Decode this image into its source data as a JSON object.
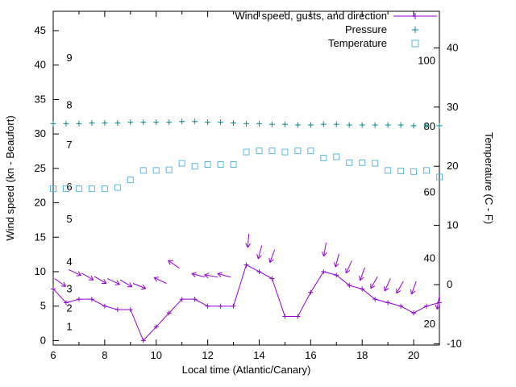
{
  "window": {
    "background": "#ffffff"
  },
  "chart_data": {
    "type": "line",
    "title": "",
    "xlabel": "Local time (Atlantic/Canary)",
    "ylabel_left": "Wind speed (kn - Beaufort)",
    "ylabel_right": "Temperature (C - F)",
    "grid": false,
    "x_range": [
      6,
      21
    ],
    "x_ticks_major": [
      6,
      8,
      10,
      12,
      14,
      16,
      18,
      20
    ],
    "x_ticks_minor": [
      7,
      9,
      11,
      13,
      15,
      17,
      19,
      21
    ],
    "left_axis": {
      "label": "Wind speed (kn - Beaufort)",
      "range": [
        0,
        47.8
      ],
      "ticks": [
        0,
        5,
        10,
        15,
        20,
        25,
        30,
        35,
        40,
        45
      ]
    },
    "right_axis": {
      "label": "Temperature (C - F)",
      "range": [
        -10,
        46
      ],
      "ticks": [
        -10,
        0,
        10,
        20,
        30,
        40
      ]
    },
    "beaufort_labels": [
      {
        "beaufort": "1",
        "kn": 2
      },
      {
        "beaufort": "2",
        "kn": 4.7
      },
      {
        "beaufort": "3",
        "kn": 7.5
      },
      {
        "beaufort": "4",
        "kn": 11.4
      },
      {
        "beaufort": "5",
        "kn": 17.6
      },
      {
        "beaufort": "6",
        "kn": 22.3
      },
      {
        "beaufort": "7",
        "kn": 28.4
      },
      {
        "beaufort": "8",
        "kn": 34.2
      },
      {
        "beaufort": "9",
        "kn": 41
      }
    ],
    "fahrenheit_labels": [
      {
        "f": "20",
        "c": -6.7
      },
      {
        "f": "40",
        "c": 4.4
      },
      {
        "f": "60",
        "c": 15.6
      },
      {
        "f": "80",
        "c": 26.7
      },
      {
        "f": "100",
        "c": 37.8
      }
    ],
    "legend": {
      "position": "top-right",
      "entries": [
        {
          "label": "Wind speed, gusts, and direction",
          "series": "wind",
          "style": "line+plus"
        },
        {
          "label": "Pressure",
          "series": "pressure",
          "style": "plus"
        },
        {
          "label": "Temperature",
          "series": "temperature",
          "style": "square"
        }
      ]
    },
    "x": [
      6,
      6.5,
      7,
      7.5,
      8,
      8.5,
      9,
      9.5,
      10,
      10.5,
      11,
      11.5,
      12,
      12.5,
      13,
      13.5,
      14,
      14.5,
      15,
      15.5,
      16,
      16.5,
      17,
      17.5,
      18,
      18.5,
      19,
      19.5,
      20,
      20.5,
      21
    ],
    "series": [
      {
        "name": "Wind speed, gusts, and direction",
        "axis": "left",
        "unit": "kn",
        "style": "line+plus",
        "values": [
          7.5,
          5.5,
          6,
          6,
          5,
          4.5,
          4.5,
          0,
          2,
          4,
          6,
          6,
          5,
          5,
          5,
          11,
          10,
          9,
          3.5,
          3.5,
          7,
          10,
          9.5,
          8,
          7.5,
          6,
          5.5,
          5,
          4,
          5,
          5.5
        ]
      },
      {
        "name": "Pressure",
        "axis": "left-plotted",
        "unit": "",
        "style": "plus",
        "values": [
          31.5,
          31.5,
          31.5,
          31.6,
          31.6,
          31.6,
          31.7,
          31.7,
          31.7,
          31.7,
          31.8,
          31.8,
          31.7,
          31.7,
          31.6,
          31.5,
          31.5,
          31.4,
          31.4,
          31.3,
          31.3,
          31.4,
          31.4,
          31.3,
          31.3,
          31.3,
          31.3,
          31.3,
          31.2,
          31.2,
          31.2
        ]
      },
      {
        "name": "Temperature",
        "axis": "right",
        "unit": "C",
        "style": "square",
        "values": [
          16.2,
          16.2,
          16.2,
          16.2,
          16.2,
          16.4,
          17.7,
          19.3,
          19.3,
          19.4,
          20.5,
          20.0,
          20.3,
          20.3,
          20.3,
          22.4,
          22.6,
          22.6,
          22.4,
          22.6,
          22.6,
          21.4,
          21.6,
          20.6,
          20.6,
          20.5,
          19.3,
          19.2,
          19.1,
          19.3,
          18.2
        ]
      }
    ],
    "gust_arrows": [
      {
        "x": 6.05,
        "kn": 9.0,
        "dir": 35
      },
      {
        "x": 6.6,
        "kn": 10.3,
        "dir": 25
      },
      {
        "x": 7.1,
        "kn": 9.8,
        "dir": 30
      },
      {
        "x": 7.6,
        "kn": 9.3,
        "dir": 30
      },
      {
        "x": 8.1,
        "kn": 9.0,
        "dir": 25
      },
      {
        "x": 8.6,
        "kn": 8.8,
        "dir": 30
      },
      {
        "x": 9.1,
        "kn": 8.3,
        "dir": 22
      },
      {
        "x": 10.4,
        "kn": 8.3,
        "dir": 205
      },
      {
        "x": 10.9,
        "kn": 10.5,
        "dir": 215
      },
      {
        "x": 11.9,
        "kn": 9.2,
        "dir": 195
      },
      {
        "x": 12.4,
        "kn": 9.2,
        "dir": 190
      },
      {
        "x": 12.9,
        "kn": 9.2,
        "dir": 195
      },
      {
        "x": 13.6,
        "kn": 15.5,
        "dir": 95
      },
      {
        "x": 14.1,
        "kn": 13.8,
        "dir": 105
      },
      {
        "x": 14.6,
        "kn": 13.2,
        "dir": 110
      },
      {
        "x": 16.6,
        "kn": 14.2,
        "dir": 100
      },
      {
        "x": 17.1,
        "kn": 12.6,
        "dir": 105
      },
      {
        "x": 17.6,
        "kn": 11.6,
        "dir": 115
      },
      {
        "x": 18.1,
        "kn": 10.6,
        "dir": 110
      },
      {
        "x": 18.6,
        "kn": 9.3,
        "dir": 120
      },
      {
        "x": 19.1,
        "kn": 9.0,
        "dir": 115
      },
      {
        "x": 19.6,
        "kn": 8.6,
        "dir": 120
      },
      {
        "x": 20.1,
        "kn": 8.6,
        "dir": 110
      },
      {
        "x": 21.0,
        "kn": 6.5,
        "dir": 100
      }
    ],
    "colors": {
      "wind": "#9400d3",
      "pressure": "#008b8b",
      "temperature": "#5fb8d8",
      "axis": "#000000",
      "text": "#000000",
      "background": "#ffffff"
    }
  }
}
